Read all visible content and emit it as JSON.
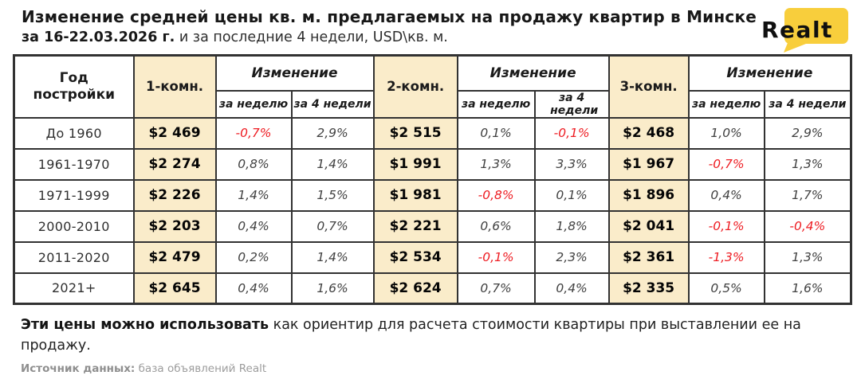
{
  "title": {
    "line1": "Изменение средней цены кв. м. предлагаемых на продажу квартир в Минске",
    "line2_bold": "за 16-22.03.2026 г.",
    "line2_rest": " и за последние 4 недели, USD\\кв. м."
  },
  "logo": {
    "brand": "Realt"
  },
  "colors": {
    "accent_yellow": "#F8CE3C",
    "cell_cream": "#FAECCA",
    "negative_red": "#EE1D23",
    "border_dark": "#323232"
  },
  "table": {
    "headers": {
      "year_built": "Год постройки",
      "room1": "1-комн.",
      "room2": "2-комн.",
      "room3": "3-комн.",
      "change": "Изменение",
      "per_week": "за неделю",
      "per_4_weeks": "за 4 недели"
    },
    "rows": [
      {
        "year": "До 1960",
        "cells": [
          "$2 469",
          "-0,7%",
          "2,9%",
          "$2 515",
          "0,1%",
          "-0,1%",
          "$2 468",
          "1,0%",
          "2,9%"
        ]
      },
      {
        "year": "1961-1970",
        "cells": [
          "$2 274",
          "0,8%",
          "1,4%",
          "$1 991",
          "1,3%",
          "3,3%",
          "$1 967",
          "-0,7%",
          "1,3%"
        ]
      },
      {
        "year": "1971-1999",
        "cells": [
          "$2 226",
          "1,4%",
          "1,5%",
          "$1 981",
          "-0,8%",
          "0,1%",
          "$1 896",
          "0,4%",
          "1,7%"
        ]
      },
      {
        "year": "2000-2010",
        "cells": [
          "$2 203",
          "0,4%",
          "0,7%",
          "$2 221",
          "0,6%",
          "1,8%",
          "$2 041",
          "-0,1%",
          "-0,4%"
        ]
      },
      {
        "year": "2011-2020",
        "cells": [
          "$2 479",
          "0,2%",
          "1,4%",
          "$2 534",
          "-0,1%",
          "2,3%",
          "$2 361",
          "-1,3%",
          "1,3%"
        ]
      },
      {
        "year": "2021+",
        "cells": [
          "$2 645",
          "0,4%",
          "1,6%",
          "$2 624",
          "0,7%",
          "0,4%",
          "$2 335",
          "0,5%",
          "1,6%"
        ]
      }
    ]
  },
  "footer": {
    "note_bold": "Эти цены можно использовать",
    "note_rest": " как ориентир для расчета стоимости квартиры при выставлении ее на продажу.",
    "source_label": "Источник данных:",
    "source_value": " база объявлений Realt"
  },
  "chart_data": {
    "type": "table",
    "title": "Изменение средней цены кв. м. предлагаемых на продажу квартир в Минске за 16-22.03.2026 г. и за последние 4 недели, USD\\кв. м.",
    "columns": [
      "Год постройки",
      "1-комн.",
      "1-комн. изменение за неделю %",
      "1-комн. изменение за 4 недели %",
      "2-комн.",
      "2-комн. изменение за неделю %",
      "2-комн. изменение за 4 недели %",
      "3-комн.",
      "3-комн. изменение за неделю %",
      "3-комн. изменение за 4 недели %"
    ],
    "rows": [
      [
        "До 1960",
        2469,
        -0.7,
        2.9,
        2515,
        0.1,
        -0.1,
        2468,
        1.0,
        2.9
      ],
      [
        "1961-1970",
        2274,
        0.8,
        1.4,
        1991,
        1.3,
        3.3,
        1967,
        -0.7,
        1.3
      ],
      [
        "1971-1999",
        2226,
        1.4,
        1.5,
        1981,
        -0.8,
        0.1,
        1896,
        0.4,
        1.7
      ],
      [
        "2000-2010",
        2203,
        0.4,
        0.7,
        2221,
        0.6,
        1.8,
        2041,
        -0.1,
        -0.4
      ],
      [
        "2011-2020",
        2479,
        0.2,
        1.4,
        2534,
        -0.1,
        2.3,
        2361,
        -1.3,
        1.3
      ],
      [
        "2021+",
        2645,
        0.4,
        1.6,
        2624,
        0.7,
        0.4,
        2335,
        0.5,
        1.6
      ]
    ],
    "source": "база объявлений Realt",
    "units": "USD/кв. м.",
    "negative_values_shown_in_red": true
  }
}
